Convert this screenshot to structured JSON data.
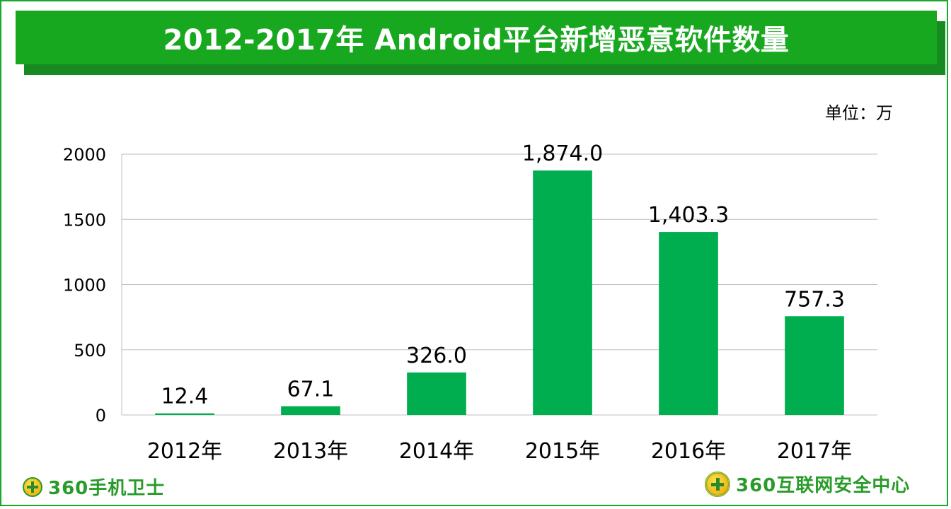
{
  "title": "2012-2017年 Android平台新增恶意软件数量",
  "unit_label": "单位：万",
  "chart_data": {
    "type": "bar",
    "title": "2012-2017年 Android平台新增恶意软件数量",
    "categories": [
      "2012年",
      "2013年",
      "2014年",
      "2015年",
      "2016年",
      "2017年"
    ],
    "values": [
      12.4,
      67.1,
      326.0,
      1874.0,
      1403.3,
      757.3
    ],
    "data_labels": [
      "12.4",
      "67.1",
      "326.0",
      "1,874.0",
      "1,403.3",
      "757.3"
    ],
    "ylim": [
      0,
      2000
    ],
    "yticks": [
      0,
      500,
      1000,
      1500,
      2000
    ],
    "grid": true,
    "bar_color": "#00ad4f",
    "xlabel": "",
    "ylabel": ""
  },
  "colors": {
    "title_bar": "#18a81f",
    "title_shadow": "#178a22",
    "frame": "#1aa82a",
    "gridline": "#bfbfbf"
  },
  "footer": {
    "left_logo_icon": "360-shield-icon",
    "left_logo_text": "360手机卫士",
    "right_logo_icon": "360-emblem-icon",
    "right_logo_text": "360互联网安全中心"
  }
}
